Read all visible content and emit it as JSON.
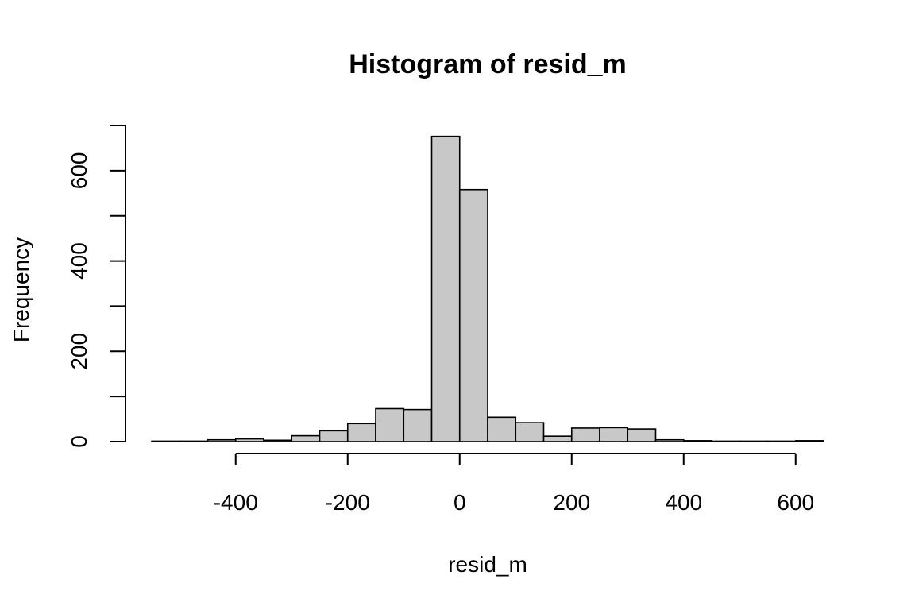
{
  "chart_data": {
    "type": "bar",
    "title": "Histogram of resid_m",
    "xlabel": "resid_m",
    "ylabel": "Frequency",
    "bin_width": 50,
    "bin_edges": [
      -550,
      -500,
      -450,
      -400,
      -350,
      -300,
      -250,
      -200,
      -150,
      -100,
      -50,
      0,
      50,
      100,
      150,
      200,
      250,
      300,
      350,
      400,
      450,
      500,
      550,
      600,
      650
    ],
    "values": [
      1,
      1,
      4,
      6,
      3,
      13,
      24,
      40,
      73,
      71,
      676,
      558,
      54,
      42,
      12,
      30,
      31,
      28,
      4,
      2,
      1,
      1,
      1,
      2
    ],
    "xlim": [
      -550,
      650
    ],
    "ylim": [
      0,
      700
    ],
    "x_ticks": [
      "-400",
      "-200",
      "0",
      "200",
      "400",
      "600"
    ],
    "x_tick_values": [
      -400,
      -200,
      0,
      200,
      400,
      600
    ],
    "y_ticks": [
      "0",
      "200",
      "400",
      "600"
    ],
    "y_tick_values": [
      0,
      200,
      400,
      600
    ],
    "y_minor_tick_values": [
      100,
      300,
      500,
      700
    ],
    "bar_color": "#c8c8c8",
    "grid": false
  }
}
